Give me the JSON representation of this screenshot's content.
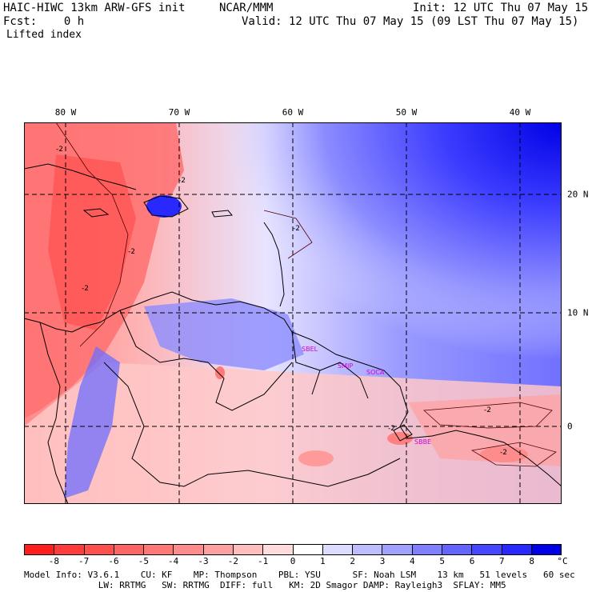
{
  "header": {
    "model_title": "HAIC-HIWC 13km ARW-GFS init",
    "org": "NCAR/MMM",
    "init": "Init: 12 UTC Thu 07 May 15",
    "fcst": "Fcst:    0 h",
    "valid": "Valid: 12 UTC Thu 07 May 15 (09 LST Thu 07 May 15)",
    "field": "Lifted index"
  },
  "map": {
    "lon_labels": [
      "80 W",
      "70 W",
      "60 W",
      "50 W",
      "40 W"
    ],
    "lat_labels": [
      "20 N",
      "10 N",
      "0"
    ],
    "contour_labels": [
      "-2",
      "-2",
      "-2",
      "-2",
      "-2",
      "-2",
      "-2",
      "-2"
    ],
    "station_labels": [
      "SBEL",
      "SMJP",
      "SOCA",
      "SBBE"
    ]
  },
  "colorbar": {
    "ticks": [
      "-8",
      "-7",
      "-6",
      "-5",
      "-4",
      "-3",
      "-2",
      "-1",
      "0",
      "1",
      "2",
      "3",
      "4",
      "5",
      "6",
      "7",
      "8"
    ],
    "unit": "°C",
    "colors": [
      "#ff1e1e",
      "#ff3c3c",
      "#ff5050",
      "#ff6464",
      "#ff7878",
      "#ff8c8c",
      "#ffa0a0",
      "#ffbebe",
      "#ffdcdc",
      "#ffffff",
      "#dcdcff",
      "#bebeff",
      "#a0a0ff",
      "#8080ff",
      "#6464ff",
      "#4646ff",
      "#2828ff",
      "#0000e6"
    ]
  },
  "footer": {
    "line1": "Model Info: V3.6.1    CU: KF    MP: Thompson    PBL: YSU      SF: Noah LSM    13 km   51 levels   60 sec",
    "line2": "              LW: RRTMG   SW: RRTMG  DIFF: full   KM: 2D Smagor DAMP: Rayleigh3  SFLAY: MM5"
  }
}
